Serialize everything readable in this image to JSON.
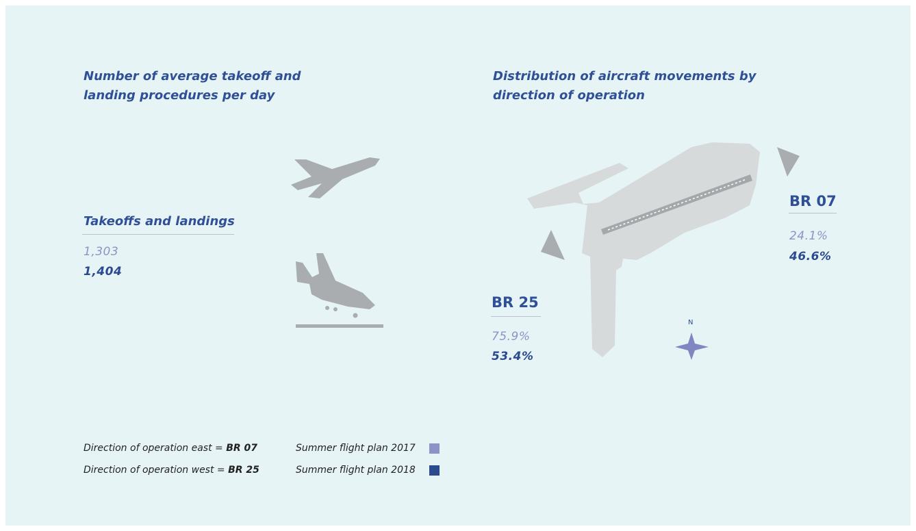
{
  "left": {
    "title": "Number of average takeoff and landing procedures per day",
    "subtitle": "Takeoffs and landings",
    "values": [
      "1,303",
      "1,404"
    ]
  },
  "right": {
    "title": "Distribution of aircraft movements by direction of operation",
    "br07": {
      "label": "BR 07",
      "values": [
        "24.1%",
        "46.6%"
      ]
    },
    "br25": {
      "label": "BR 25",
      "values": [
        "75.9%",
        "53.4%"
      ]
    },
    "compass": "N"
  },
  "legend": {
    "directions": [
      {
        "text": "Direction of operation east =",
        "code": "BR 07"
      },
      {
        "text": "Direction of operation west =",
        "code": "BR 25"
      }
    ],
    "plans": [
      {
        "text": "Summer flight plan 2017",
        "color": "#8d93c6"
      },
      {
        "text": "Summer flight plan 2018",
        "color": "#2c4a8e"
      }
    ]
  }
}
